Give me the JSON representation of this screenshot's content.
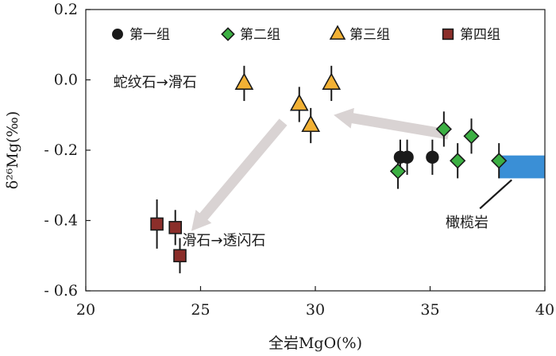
{
  "chart_data": {
    "type": "scatter",
    "xlabel": "全岩MgO(%)",
    "ylabel": "δ²⁶Mg(‰)",
    "xlim": [
      20,
      40
    ],
    "ylim": [
      -0.6,
      0.2
    ],
    "x_ticks": [
      20,
      25,
      30,
      35,
      40
    ],
    "x_tick_labels": [
      "20",
      "25",
      "30",
      "35",
      "40"
    ],
    "y_ticks": [
      0.2,
      0.0,
      -0.2,
      -0.4,
      -0.6
    ],
    "y_tick_labels": [
      "0.2",
      "0.0",
      "- 0.2",
      "- 0.4",
      "- 0.6"
    ],
    "grid": false,
    "legend_position": "top",
    "series": [
      {
        "name": "第一组",
        "marker": "circle",
        "color": "#1a1a1a",
        "points": [
          {
            "x": 33.7,
            "y": -0.22,
            "err": 0.05
          },
          {
            "x": 34.0,
            "y": -0.22,
            "err": 0.05
          },
          {
            "x": 35.1,
            "y": -0.22,
            "err": 0.05
          }
        ]
      },
      {
        "name": "第二组",
        "marker": "diamond",
        "color": "#3cb043",
        "points": [
          {
            "x": 33.6,
            "y": -0.26,
            "err": 0.05
          },
          {
            "x": 35.6,
            "y": -0.14,
            "err": 0.05
          },
          {
            "x": 36.2,
            "y": -0.23,
            "err": 0.05
          },
          {
            "x": 36.8,
            "y": -0.16,
            "err": 0.05
          },
          {
            "x": 38.0,
            "y": -0.23,
            "err": 0.05
          }
        ]
      },
      {
        "name": "第三组",
        "marker": "triangle",
        "color": "#f2b134",
        "points": [
          {
            "x": 26.9,
            "y": -0.01,
            "err": 0.05
          },
          {
            "x": 29.3,
            "y": -0.07,
            "err": 0.05
          },
          {
            "x": 29.8,
            "y": -0.13,
            "err": 0.05
          },
          {
            "x": 30.7,
            "y": -0.01,
            "err": 0.05
          }
        ]
      },
      {
        "name": "第四组",
        "marker": "square",
        "color": "#8b2e2a",
        "points": [
          {
            "x": 23.1,
            "y": -0.41,
            "err": 0.07
          },
          {
            "x": 23.9,
            "y": -0.42,
            "err": 0.05
          },
          {
            "x": 24.1,
            "y": -0.5,
            "err": 0.05
          }
        ]
      }
    ],
    "peridotite_range": {
      "label": "橄榄岩",
      "color": "#3a8fd6",
      "x": [
        38.0,
        40.0
      ],
      "y": [
        -0.28,
        -0.215
      ]
    },
    "arrows": [
      {
        "from": {
          "x": 35.8,
          "y": -0.155
        },
        "to": {
          "x": 30.8,
          "y": -0.1
        },
        "color": "#d9d3d3"
      },
      {
        "from": {
          "x": 28.6,
          "y": -0.12
        },
        "to": {
          "x": 24.6,
          "y": -0.43
        },
        "color": "#d9d3d3"
      }
    ],
    "annotations": [
      {
        "text": "蛇纹石→滑石",
        "x": 21.2,
        "y": -0.02
      },
      {
        "text": "滑石→透闪石",
        "x": 24.2,
        "y": -0.47
      }
    ]
  }
}
